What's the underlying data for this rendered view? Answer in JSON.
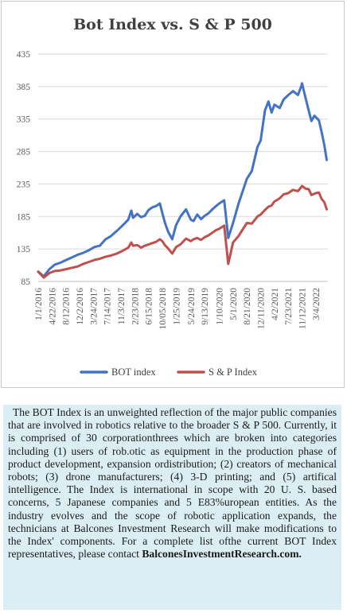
{
  "chart_data": {
    "type": "line",
    "title": "Bot Index vs. S & P 500",
    "ylim": [
      85,
      435
    ],
    "yticks": [
      85,
      135,
      185,
      235,
      285,
      335,
      385,
      435
    ],
    "xtick_labels": [
      "1/1/2016",
      "4/22/2016",
      "8/12/2016",
      "12/2/2016",
      "3/24/2017",
      "7/14/2017",
      "11/3/2017",
      "2/23/2018",
      "6/15/2018",
      "10/05/2018",
      "1/25/2019",
      "5/24/2019",
      "9/13/2019",
      "1/10/2020",
      "5/1/2020",
      "8/21/2020",
      "12/11/2020",
      "4/2/2021",
      "7/23/2021",
      "11/12/2021",
      "3/4/2022"
    ],
    "grid": true,
    "legend_position": "bottom",
    "x": [
      "2016-01-01",
      "2016-02-15",
      "2016-04-01",
      "2016-05-15",
      "2016-07-01",
      "2016-08-15",
      "2016-10-01",
      "2016-11-15",
      "2017-01-01",
      "2017-02-15",
      "2017-04-01",
      "2017-05-15",
      "2017-07-01",
      "2017-08-15",
      "2017-10-01",
      "2017-11-15",
      "2018-01-01",
      "2018-01-26",
      "2018-02-09",
      "2018-03-15",
      "2018-04-15",
      "2018-05-15",
      "2018-06-15",
      "2018-07-15",
      "2018-08-15",
      "2018-09-15",
      "2018-10-05",
      "2018-10-25",
      "2018-11-20",
      "2018-12-24",
      "2019-01-25",
      "2019-03-01",
      "2019-04-15",
      "2019-05-24",
      "2019-06-15",
      "2019-07-15",
      "2019-08-15",
      "2019-09-13",
      "2019-10-15",
      "2019-11-15",
      "2019-12-15",
      "2020-01-10",
      "2020-02-19",
      "2020-03-23",
      "2020-05-01",
      "2020-06-15",
      "2020-07-15",
      "2020-08-21",
      "2020-09-30",
      "2020-11-15",
      "2020-12-11",
      "2021-01-15",
      "2021-02-12",
      "2021-03-10",
      "2021-04-02",
      "2021-05-15",
      "2021-06-15",
      "2021-07-23",
      "2021-08-31",
      "2021-10-10",
      "2021-11-05",
      "2021-11-12",
      "2021-12-10",
      "2022-01-05",
      "2022-01-27",
      "2022-02-20",
      "2022-03-04",
      "2022-03-29",
      "2022-04-20",
      "2022-05-12",
      "2022-05-31"
    ],
    "series": [
      {
        "name": "BOT index",
        "color": "#4472c4",
        "values": [
          100,
          93,
          104,
          111,
          114,
          118,
          122,
          126,
          129,
          133,
          138,
          140,
          150,
          155,
          163,
          171,
          180,
          194,
          183,
          189,
          184,
          186,
          195,
          199,
          201,
          205,
          190,
          176,
          162,
          150,
          172,
          185,
          196,
          180,
          178,
          188,
          181,
          186,
          190,
          196,
          201,
          205,
          210,
          152,
          175,
          205,
          222,
          243,
          255,
          292,
          302,
          348,
          362,
          345,
          357,
          352,
          365,
          372,
          378,
          372,
          385,
          390,
          368,
          348,
          332,
          340,
          338,
          333,
          315,
          295,
          272
        ]
      },
      {
        "name": "S & P Index",
        "color": "#c0504d",
        "values": [
          100,
          91,
          98,
          101,
          102,
          104,
          106,
          108,
          112,
          115,
          118,
          120,
          123,
          125,
          128,
          132,
          137,
          145,
          140,
          141,
          137,
          140,
          142,
          144,
          146,
          150,
          147,
          141,
          136,
          128,
          138,
          142,
          151,
          147,
          150,
          152,
          149,
          153,
          156,
          160,
          164,
          166,
          171,
          112,
          145,
          155,
          164,
          175,
          174,
          185,
          188,
          195,
          200,
          202,
          208,
          213,
          219,
          221,
          226,
          224,
          230,
          232,
          228,
          227,
          218,
          220,
          221,
          222,
          212,
          207,
          196
        ]
      }
    ]
  },
  "description": {
    "paragraph": "The BOT Index is an unweighted reflection of the major public companies that are involved in robotics relative to the broader S & P 500. Currently, it is comprised of 30 corporationthrees which are broken into categories including (1) users of rob.otic as equipment in the production phase of product development, expansion ordistribution; (2) creators of mechanical robots; (3) drone manufacturers; (4) 3-D printing; and (5) artifical intelligence. The Index is international in scope with 20 U. S. based concerns, 5 Japanese companies and 5 E83%uropean entities. As the industry evolves and the scope of robotic application expands, the technicians at Balcones Investment Research will make modifications to the Index' components. For a  complete list ofthe current BOT Index representatives, please contact",
    "contact": "BalconesInvestmentResearch.com."
  }
}
